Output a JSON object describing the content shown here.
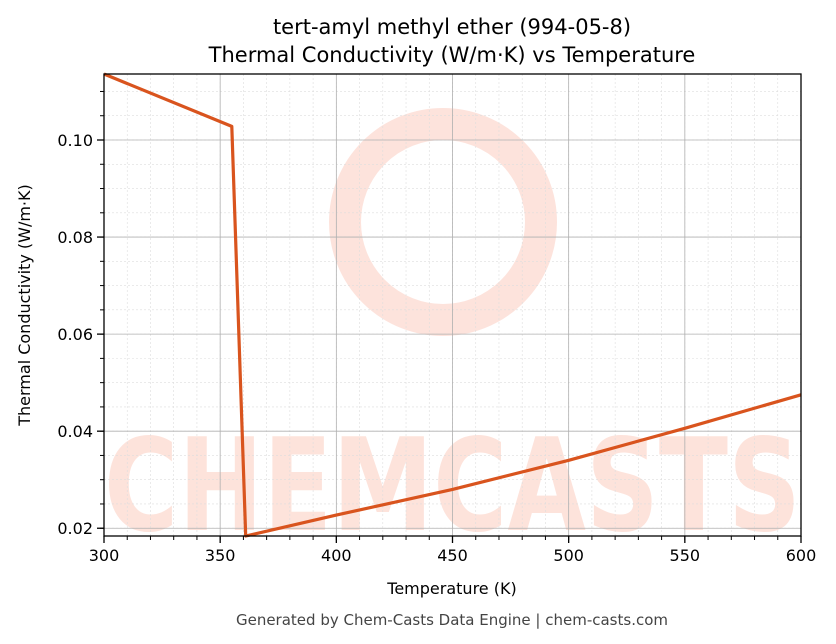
{
  "chart_data": {
    "type": "line",
    "title": "tert-amyl methyl ether (994-05-8)",
    "subtitle": "Thermal Conductivity (W/m·K) vs Temperature",
    "xlabel": "Temperature (K)",
    "ylabel": "Thermal Conductivity (W/m·K)",
    "xlim": [
      300,
      600
    ],
    "ylim": [
      0.0184,
      0.1136
    ],
    "x_ticks": [
      "300",
      "350",
      "400",
      "450",
      "500",
      "550",
      "600"
    ],
    "y_ticks": [
      "0.02",
      "0.04",
      "0.06",
      "0.08",
      "0.10"
    ],
    "grid": true,
    "legend": null,
    "series": [
      {
        "name": "Thermal Conductivity",
        "color": "#d9541e",
        "x": [
          300,
          355,
          361,
          400,
          450,
          500,
          550,
          600
        ],
        "y": [
          0.1136,
          0.1028,
          0.0184,
          0.0227,
          0.028,
          0.034,
          0.0406,
          0.0475
        ]
      }
    ]
  },
  "watermark": "CHEMCASTS",
  "footer": "Generated by Chem-Casts Data Engine | chem-casts.com"
}
